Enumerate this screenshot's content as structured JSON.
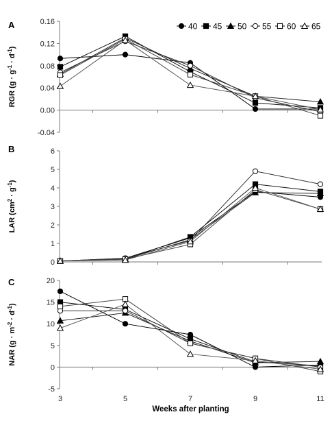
{
  "chart_data": [
    {
      "type": "line",
      "panel": "A",
      "ylabel_parts": [
        "RGR (g · g",
        "-1",
        " · d",
        "-1",
        ")"
      ],
      "x": [
        3,
        5,
        7,
        9,
        11
      ],
      "xlabel": "",
      "ylim": [
        -0.04,
        0.16
      ],
      "yticks": [
        "-0.04",
        "0.00",
        "0.04",
        "0.08",
        "0.12",
        "0.16"
      ],
      "legend_position": "top-right",
      "series": [
        {
          "name": "40",
          "marker": "circle-filled",
          "values": [
            0.093,
            0.1,
            0.085,
            0.002,
            0.002
          ]
        },
        {
          "name": "45",
          "marker": "square-filled",
          "values": [
            0.078,
            0.133,
            0.069,
            0.013,
            0.004
          ]
        },
        {
          "name": "50",
          "marker": "triangle-filled",
          "values": [
            0.065,
            0.13,
            0.075,
            0.025,
            0.015
          ]
        },
        {
          "name": "55",
          "marker": "circle-open",
          "values": [
            0.068,
            0.124,
            0.08,
            0.022,
            -0.003
          ]
        },
        {
          "name": "60",
          "marker": "square-open",
          "values": [
            0.063,
            0.128,
            0.064,
            0.025,
            -0.01
          ]
        },
        {
          "name": "65",
          "marker": "triangle-open",
          "values": [
            0.043,
            0.126,
            0.045,
            0.025,
            0.001
          ]
        }
      ]
    },
    {
      "type": "line",
      "panel": "B",
      "ylabel_parts": [
        "LAR (cm",
        "2",
        " · g",
        "-1",
        ")"
      ],
      "x": [
        3,
        5,
        7,
        9,
        11
      ],
      "xlabel": "",
      "ylim": [
        0,
        6
      ],
      "yticks": [
        "0",
        "1",
        "2",
        "3",
        "4",
        "5",
        "6"
      ],
      "series": [
        {
          "name": "40",
          "marker": "circle-filled",
          "values": [
            0.05,
            0.2,
            1.3,
            3.8,
            3.5
          ]
        },
        {
          "name": "45",
          "marker": "square-filled",
          "values": [
            0.05,
            0.15,
            1.35,
            4.2,
            3.8
          ]
        },
        {
          "name": "50",
          "marker": "triangle-filled",
          "values": [
            0.05,
            0.15,
            1.2,
            3.75,
            3.7
          ]
        },
        {
          "name": "55",
          "marker": "circle-open",
          "values": [
            0.05,
            0.2,
            1.15,
            4.9,
            4.2
          ]
        },
        {
          "name": "60",
          "marker": "square-open",
          "values": [
            0.05,
            0.15,
            0.95,
            3.9,
            2.85
          ]
        },
        {
          "name": "65",
          "marker": "triangle-open",
          "values": [
            0.05,
            0.1,
            1.1,
            4.0,
            2.85
          ]
        }
      ]
    },
    {
      "type": "line",
      "panel": "C",
      "ylabel_parts": [
        "NAR (g · m",
        "-2",
        " · d",
        "-1",
        ")"
      ],
      "x": [
        3,
        5,
        7,
        9,
        11
      ],
      "xlabel": "Weeks after planting",
      "ylim": [
        -5,
        20
      ],
      "yticks": [
        "-5",
        "0",
        "5",
        "10",
        "15",
        "20"
      ],
      "xticks": [
        "3",
        "5",
        "7",
        "9",
        "11"
      ],
      "series": [
        {
          "name": "40",
          "marker": "circle-filled",
          "values": [
            17.5,
            10.0,
            7.5,
            0.0,
            0.5
          ]
        },
        {
          "name": "45",
          "marker": "square-filled",
          "values": [
            15.0,
            13.3,
            6.5,
            1.2,
            0.3
          ]
        },
        {
          "name": "50",
          "marker": "triangle-filled",
          "values": [
            10.7,
            12.5,
            6.0,
            1.0,
            1.3
          ]
        },
        {
          "name": "55",
          "marker": "circle-open",
          "values": [
            13.0,
            13.0,
            5.5,
            2.0,
            0.0
          ]
        },
        {
          "name": "60",
          "marker": "square-open",
          "values": [
            14.0,
            15.7,
            5.5,
            2.0,
            -1.0
          ]
        },
        {
          "name": "65",
          "marker": "triangle-open",
          "values": [
            9.0,
            14.5,
            3.0,
            1.5,
            -0.5
          ]
        }
      ]
    }
  ]
}
